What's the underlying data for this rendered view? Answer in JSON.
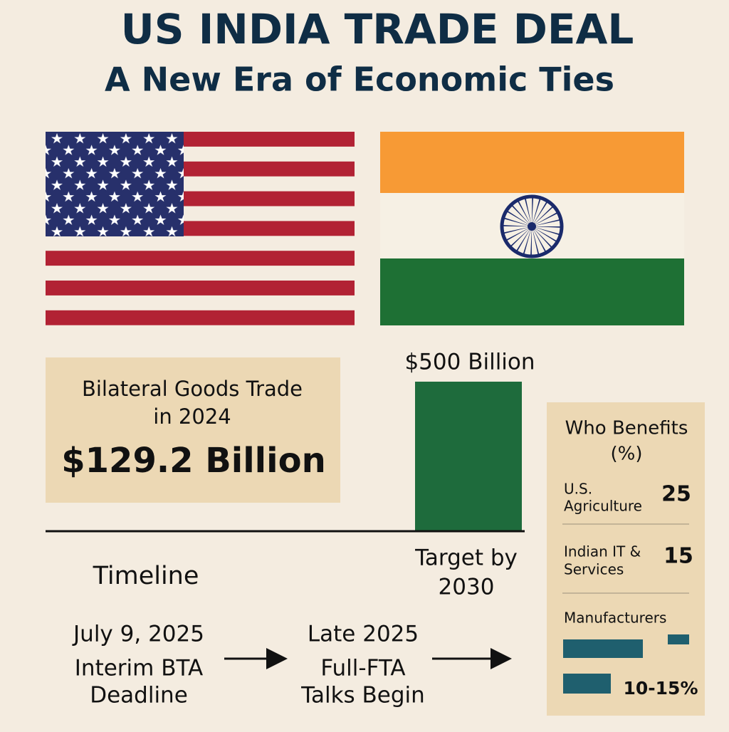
{
  "header": {
    "title": "US INDIA TRADE DEAL",
    "subtitle": "A New Era of Economic Ties"
  },
  "trade_2024": {
    "label_lines": [
      "Bilateral Goods Trade",
      "in 2024"
    ],
    "value": "$129.2 Billion"
  },
  "target": {
    "value": "$500 Billion",
    "label_lines": [
      "Target by",
      "2030"
    ]
  },
  "timeline": {
    "title": "Timeline",
    "events": [
      {
        "lines": [
          "July 9, 2025",
          "Interim BTA",
          "Deadline"
        ]
      },
      {
        "lines": [
          "Late 2025",
          "Full-FTA",
          "Talks Begin"
        ]
      }
    ]
  },
  "benefits": {
    "title_lines": [
      "Who Benefits",
      "(%)"
    ],
    "rows": [
      {
        "label_lines": [
          "U.S.",
          "Agriculture"
        ],
        "value": "25"
      },
      {
        "label_lines": [
          "Indian IT &",
          "Services"
        ],
        "value": "15"
      },
      {
        "label_lines": [
          "Manufacturers"
        ],
        "value": "10-15%"
      }
    ]
  }
}
